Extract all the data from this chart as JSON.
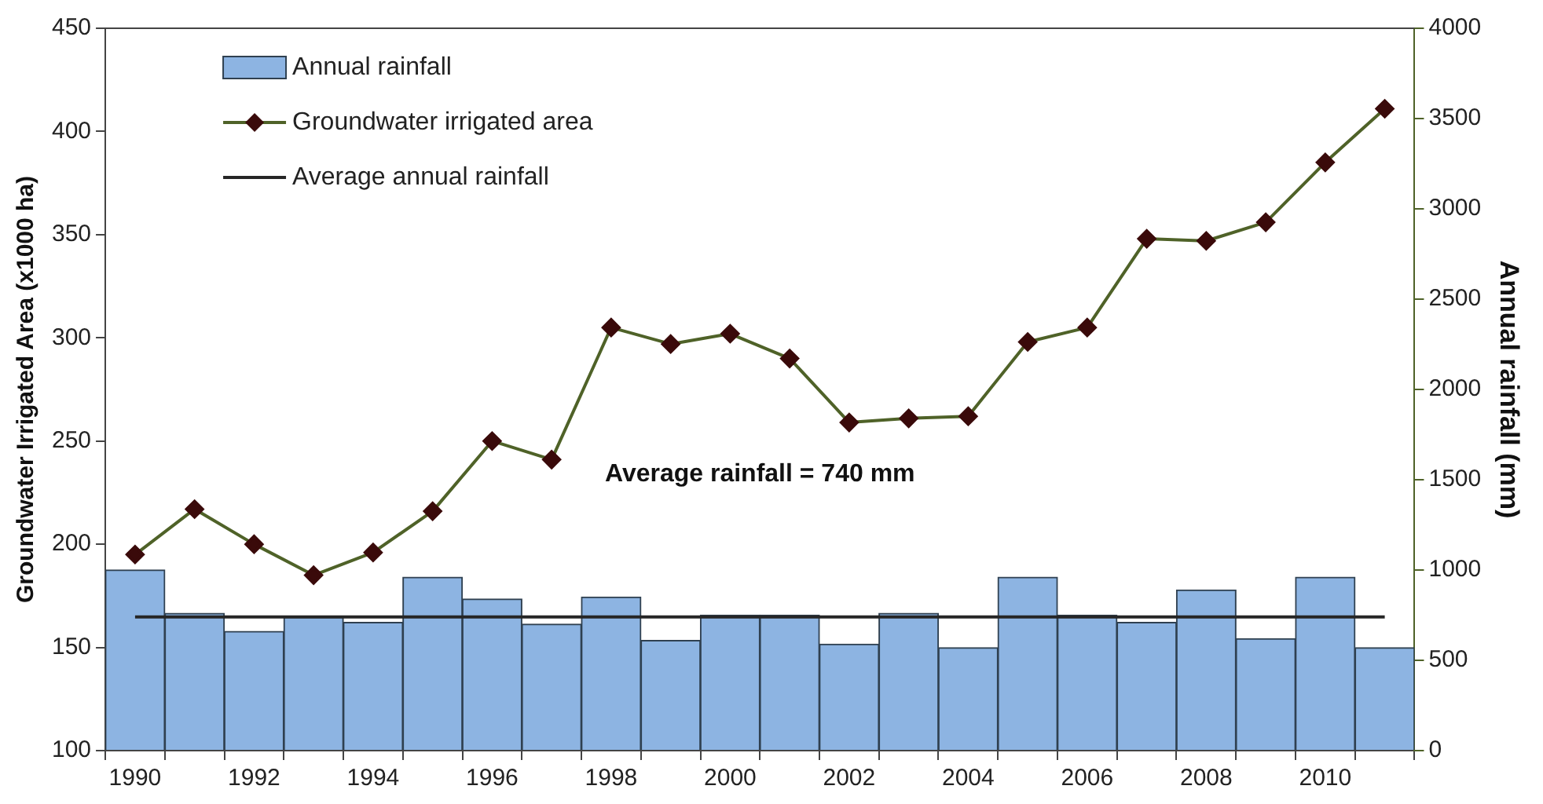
{
  "chart_data": {
    "type": "bar",
    "ylabel": "Groundwater Irrigated Area (x1000 ha)",
    "y2label": "Annual rainfall (mm)",
    "categories": [
      "1990",
      null,
      "1992",
      null,
      "1994",
      null,
      "1996",
      null,
      "1998",
      null,
      "2000",
      null,
      "2002",
      null,
      "2004",
      null,
      "2006",
      null,
      "2008",
      null,
      "2010",
      null
    ],
    "series": [
      {
        "name": "Annual rainfall",
        "axis": "y2",
        "color": "#8db4e2",
        "values": [
          1000,
          760,
          660,
          740,
          710,
          960,
          840,
          700,
          850,
          610,
          750,
          750,
          590,
          760,
          570,
          960,
          750,
          710,
          890,
          620,
          960,
          570
        ]
      },
      {
        "name": "Groundwater irrigated area",
        "type": "line",
        "color": "#4f6228",
        "marker": "diamond",
        "values": [
          195,
          217,
          200,
          185,
          196,
          216,
          250,
          241,
          305,
          297,
          302,
          290,
          259,
          261,
          262,
          298,
          305,
          348,
          347,
          356,
          385,
          411
        ]
      },
      {
        "name": "Average annual rainfall",
        "type": "line",
        "axis": "y2",
        "color": "#262626",
        "marker": "none",
        "values": [
          740,
          740,
          740,
          740,
          740,
          740,
          740,
          740,
          740,
          740,
          740,
          740,
          740,
          740,
          740,
          740,
          740,
          740,
          740,
          740,
          740,
          740
        ]
      }
    ],
    "annotations": [
      "Average rainfall = 740 mm"
    ],
    "ylim": [
      100,
      450
    ],
    "yticks": [
      100,
      150,
      200,
      250,
      300,
      350,
      400,
      450
    ],
    "y2lim": [
      0,
      4000
    ],
    "y2ticks": [
      0,
      500,
      1000,
      1500,
      2000,
      2500,
      3000,
      3500,
      4000
    ],
    "grid": false,
    "legend": "top left"
  }
}
